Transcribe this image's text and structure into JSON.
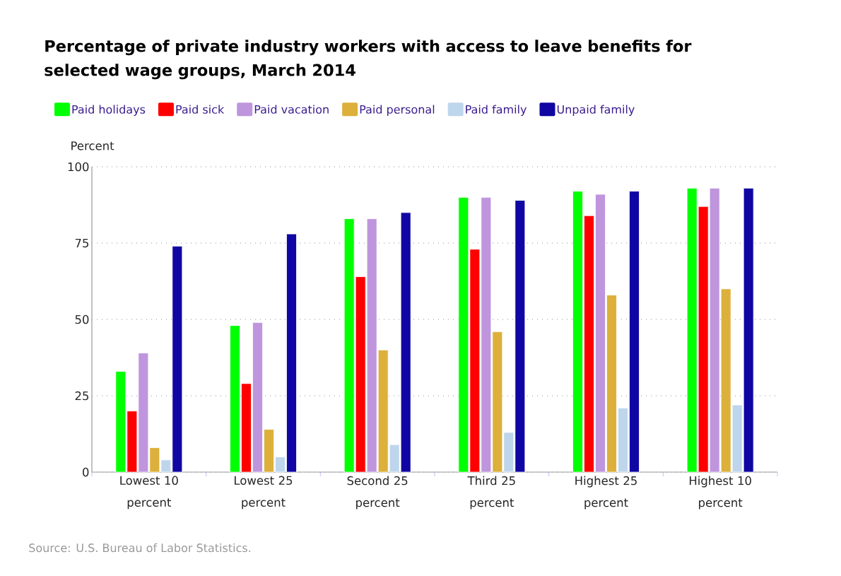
{
  "chart_data": {
    "type": "bar",
    "title": "Percentage of private industry workers with access to leave benefits for selected wage groups, March 2014",
    "ylabel": "Percent",
    "categories": [
      "Lowest 10 percent",
      "Lowest 25 percent",
      "Second 25 percent",
      "Third 25 percent",
      "Highest 25 percent",
      "Highest 10 percent"
    ],
    "series": [
      {
        "name": "Paid holidays",
        "color": "#00ff00",
        "values": [
          33,
          48,
          83,
          90,
          92,
          93
        ]
      },
      {
        "name": "Paid sick",
        "color": "#ff0000",
        "values": [
          20,
          29,
          64,
          73,
          84,
          87
        ]
      },
      {
        "name": "Paid vacation",
        "color": "#bf95de",
        "values": [
          39,
          49,
          83,
          90,
          91,
          93
        ]
      },
      {
        "name": "Paid personal",
        "color": "#dcb03b",
        "values": [
          8,
          14,
          40,
          46,
          58,
          60
        ]
      },
      {
        "name": "Paid family",
        "color": "#bed6ec",
        "values": [
          4,
          5,
          9,
          13,
          21,
          22
        ]
      },
      {
        "name": "Unpaid family",
        "color": "#0f06a3",
        "values": [
          74,
          78,
          85,
          89,
          92,
          93
        ]
      }
    ],
    "ylim": [
      0,
      100
    ],
    "yticks": [
      0,
      25,
      50,
      75,
      100
    ],
    "grid": "y",
    "legend": "top",
    "annotations": [
      "Source: U.S. Bureau of Labor Statistics."
    ]
  }
}
